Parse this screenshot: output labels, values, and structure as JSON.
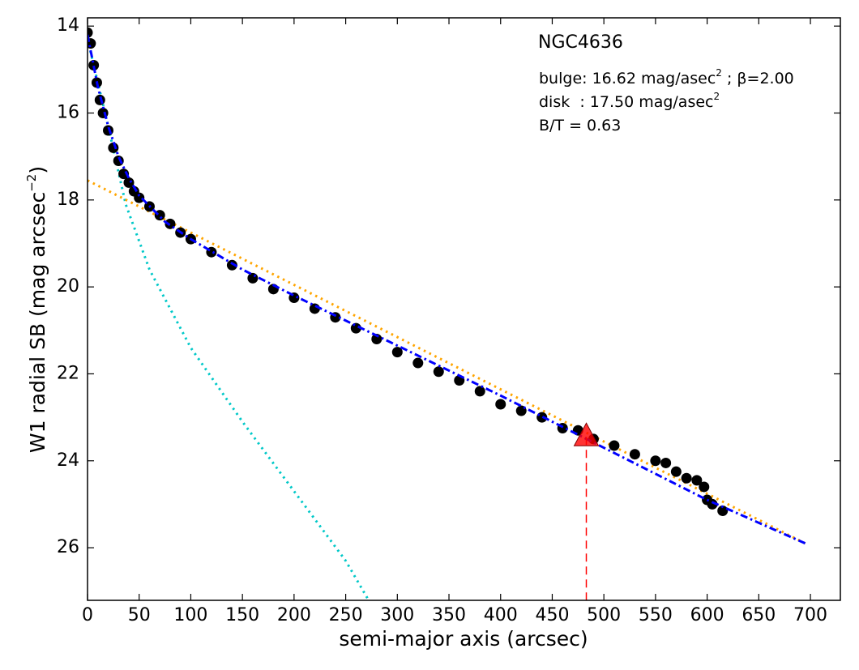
{
  "chart_data": {
    "type": "line",
    "title": "NGC4636",
    "annotations": [
      {
        "text": "bulge: 16.62 mag/asec",
        "sup": "2",
        "tail": " ; β=2.00"
      },
      {
        "text": "disk  : 17.50 mag/asec",
        "sup": "2"
      },
      {
        "text": "B/T = 0.63"
      }
    ],
    "xlabel": "semi-major axis (arcsec)",
    "ylabel": {
      "text": "W1 radial SB (mag arcsec",
      "sup": "−2",
      "tail": ")"
    },
    "xlim": [
      0,
      729
    ],
    "ylim": [
      27.21,
      13.81
    ],
    "xticks": [
      0,
      50,
      100,
      150,
      200,
      250,
      300,
      350,
      400,
      450,
      500,
      550,
      600,
      650,
      700
    ],
    "yticks": [
      14,
      16,
      18,
      20,
      22,
      24,
      26
    ],
    "series": [
      {
        "type": "line",
        "style": "dotted",
        "color": "#00c8c8",
        "x": [
          0,
          10,
          20,
          37,
          60,
          100,
          150,
          200,
          250,
          272
        ],
        "values": [
          14.3,
          15.3,
          16.3,
          18.1,
          19.6,
          21.4,
          23.1,
          24.7,
          26.3,
          27.2
        ]
      },
      {
        "type": "line",
        "style": "dotted",
        "color": "#ffa500",
        "x": [
          0,
          695
        ],
        "values": [
          17.55,
          25.9
        ]
      },
      {
        "type": "scatter",
        "color": "#000000",
        "x": [
          0,
          3,
          6,
          9,
          12,
          15,
          20,
          25,
          30,
          35,
          40,
          45,
          50,
          60,
          70,
          80,
          90,
          100,
          120,
          140,
          160,
          180,
          200,
          220,
          240,
          260,
          280,
          300,
          320,
          340,
          360,
          380,
          400,
          420,
          440,
          460,
          475,
          490,
          510,
          530,
          550,
          560,
          570,
          580,
          590,
          597,
          600,
          605,
          615
        ],
        "values": [
          14.15,
          14.4,
          14.9,
          15.3,
          15.7,
          16.0,
          16.4,
          16.8,
          17.1,
          17.4,
          17.6,
          17.8,
          17.95,
          18.15,
          18.35,
          18.55,
          18.75,
          18.9,
          19.2,
          19.5,
          19.8,
          20.05,
          20.25,
          20.5,
          20.7,
          20.95,
          21.2,
          21.5,
          21.75,
          21.95,
          22.15,
          22.4,
          22.7,
          22.85,
          23.0,
          23.25,
          23.3,
          23.5,
          23.65,
          23.85,
          24.0,
          24.05,
          24.25,
          24.4,
          24.45,
          24.6,
          24.9,
          25.0,
          25.15
        ]
      },
      {
        "type": "line",
        "style": "dashdot",
        "color": "#0000ff",
        "x": [
          0,
          10,
          20,
          30,
          40,
          50,
          75,
          100,
          150,
          200,
          300,
          400,
          500,
          600,
          695
        ],
        "values": [
          14.2,
          15.4,
          16.3,
          17.0,
          17.5,
          17.9,
          18.5,
          18.9,
          19.6,
          20.2,
          21.35,
          22.5,
          23.7,
          24.9,
          25.9
        ]
      }
    ],
    "marker": {
      "x": 483,
      "y": 23.45,
      "color": "#ff0000"
    }
  }
}
